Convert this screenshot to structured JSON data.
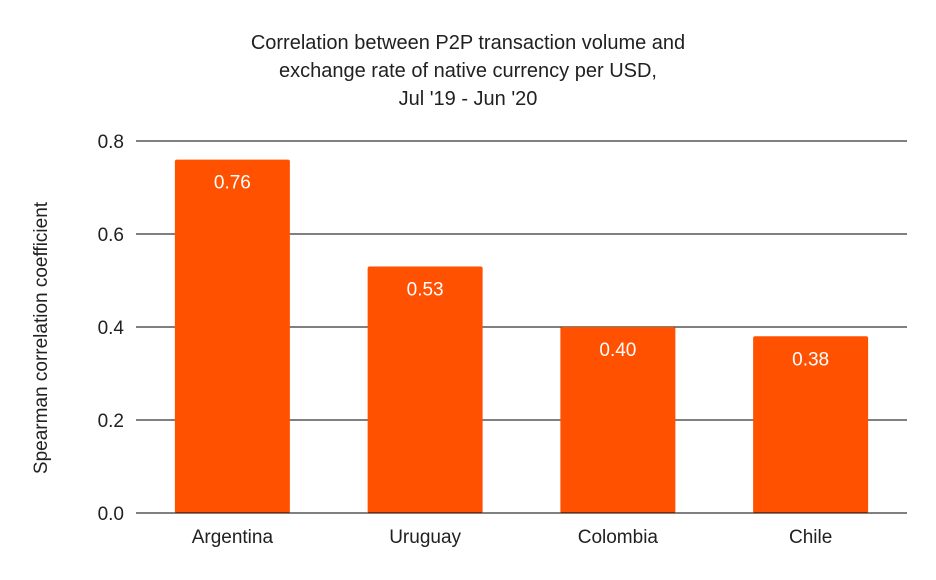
{
  "chart_data": {
    "type": "bar",
    "title_lines": [
      "Correlation between P2P transaction volume and",
      "exchange rate of native currency per USD,",
      "Jul '19 - Jun '20"
    ],
    "categories": [
      "Argentina",
      "Uruguay",
      "Colombia",
      "Chile"
    ],
    "values": [
      0.76,
      0.53,
      0.4,
      0.38
    ],
    "data_labels": [
      "0.76",
      "0.53",
      "0.40",
      "0.38"
    ],
    "xlabel": "",
    "ylabel": "Spearman correlation coefficient",
    "ylim": [
      0,
      0.8
    ],
    "yticks": [
      "0.0",
      "0.2",
      "0.4",
      "0.6",
      "0.8"
    ],
    "grid": true,
    "legend": "none",
    "bar_color": "#ff5100"
  }
}
